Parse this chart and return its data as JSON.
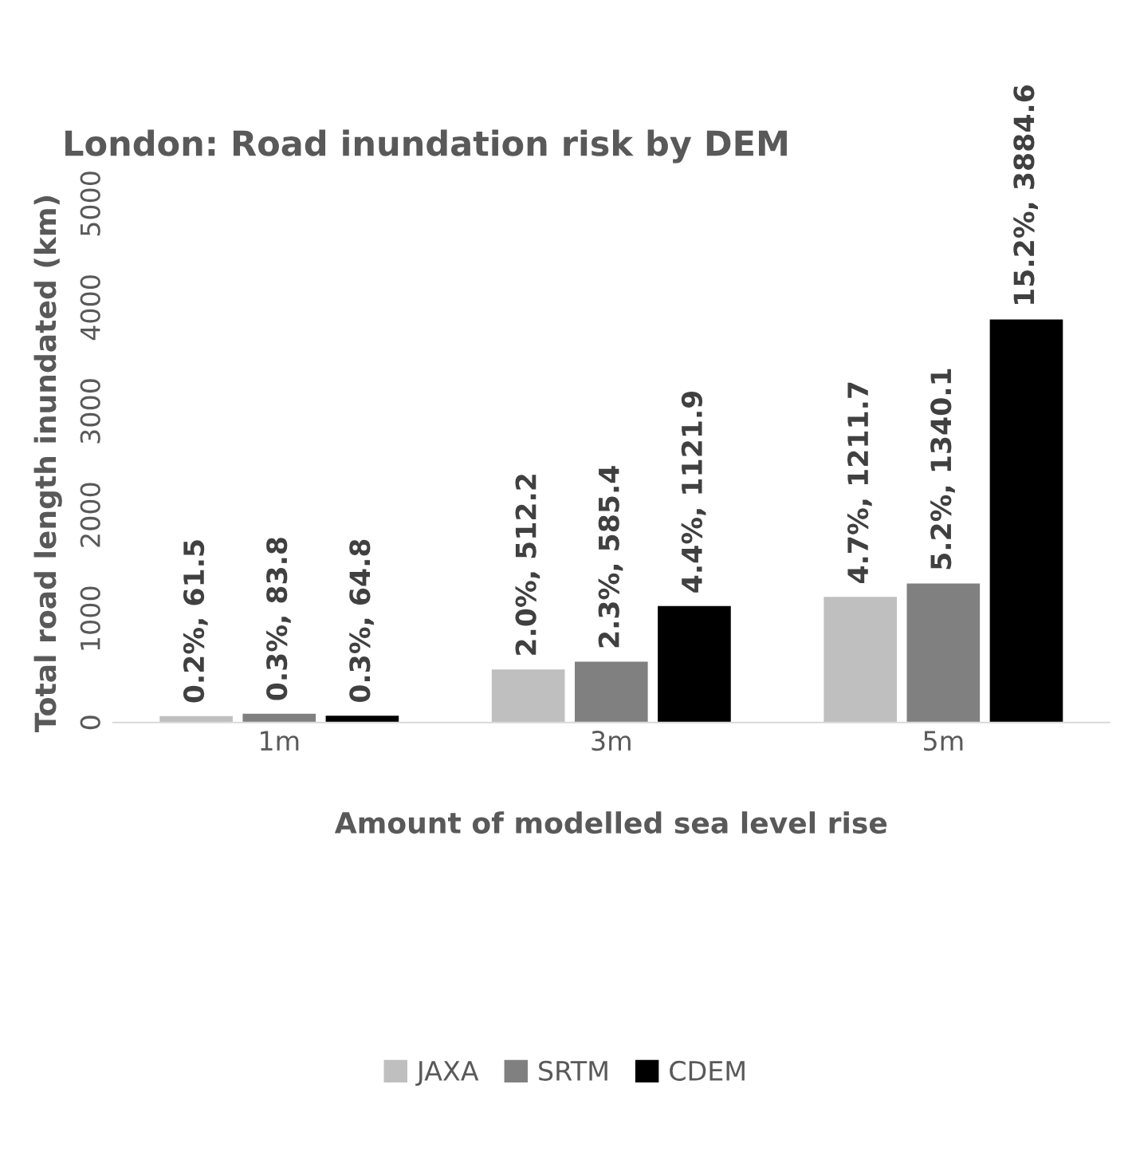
{
  "chart_data": {
    "type": "bar",
    "title": "London: Road inundation risk by DEM",
    "xlabel": "Amount of modelled sea level rise",
    "ylabel": "Total road length inundated (km)",
    "categories": [
      "1m",
      "3m",
      "5m"
    ],
    "series": [
      {
        "name": "JAXA",
        "color": "#bfbfbf",
        "values": [
          61.5,
          512.2,
          1211.7
        ],
        "value_labels": [
          "0.2%, 61.5",
          "2.0%, 512.2",
          "4.7%, 1211.7"
        ]
      },
      {
        "name": "SRTM",
        "color": "#808080",
        "values": [
          83.8,
          585.4,
          1340.1
        ],
        "value_labels": [
          "0.3%, 83.8",
          "2.3%, 585.4",
          "5.2%, 1340.1"
        ]
      },
      {
        "name": "CDEM",
        "color": "#000000",
        "values": [
          64.8,
          1121.9,
          3884.6
        ],
        "value_labels": [
          "0.3%, 64.8",
          "4.4%, 1121.9",
          "15.2%, 3884.6"
        ]
      }
    ],
    "ylim": [
      0,
      5000
    ],
    "yticks": [
      0,
      1000,
      2000,
      3000,
      4000,
      5000
    ],
    "grid": false,
    "legend": "bottom"
  }
}
